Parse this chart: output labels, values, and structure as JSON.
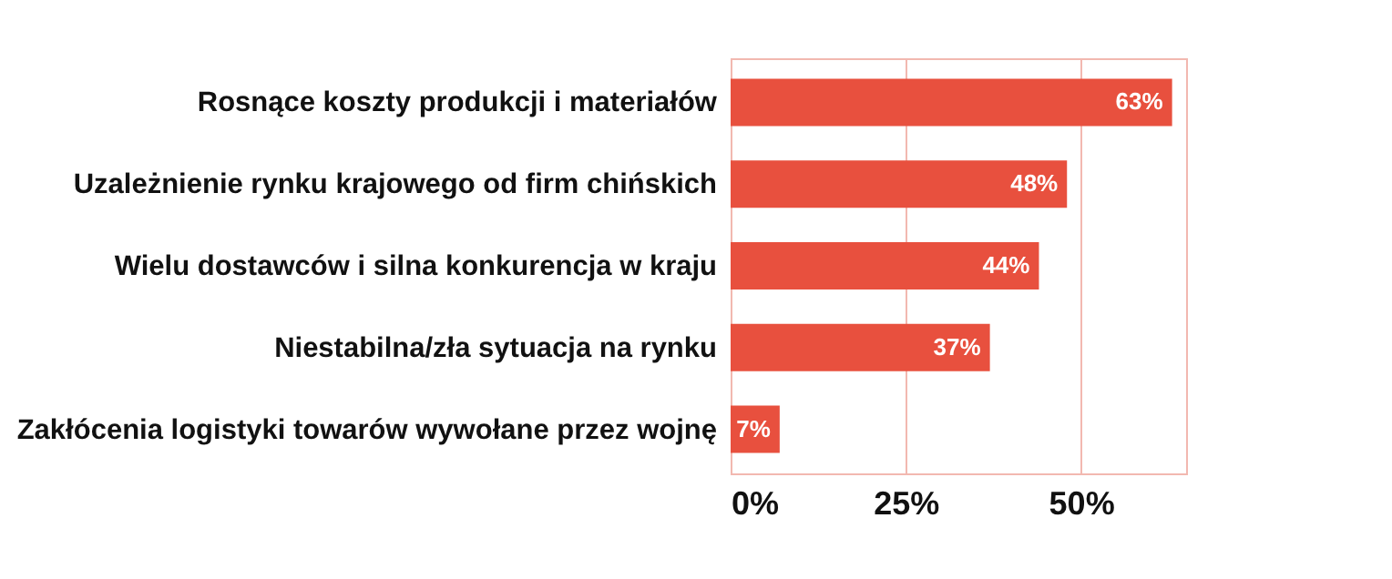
{
  "chart_data": {
    "type": "bar",
    "orientation": "horizontal",
    "categories": [
      "Rosnące koszty produkcji i materiałów",
      "Uzależnienie rynku krajowego od firm chińskich",
      "Wielu dostawców i silna konkurencja w kraju",
      "Niestabilna/zła sytuacja na rynku",
      "Zakłócenia logistyki towarów wywołane przez wojnę"
    ],
    "values": [
      63,
      48,
      44,
      37,
      7
    ],
    "value_labels": [
      "63%",
      "48%",
      "44%",
      "37%",
      "7%"
    ],
    "color": "#e8503e",
    "xlim": [
      0,
      65
    ],
    "xticks": [
      {
        "value": 0,
        "label": "0%"
      },
      {
        "value": 25,
        "label": "25%"
      },
      {
        "value": 50,
        "label": "50%"
      }
    ],
    "grid": "x"
  }
}
